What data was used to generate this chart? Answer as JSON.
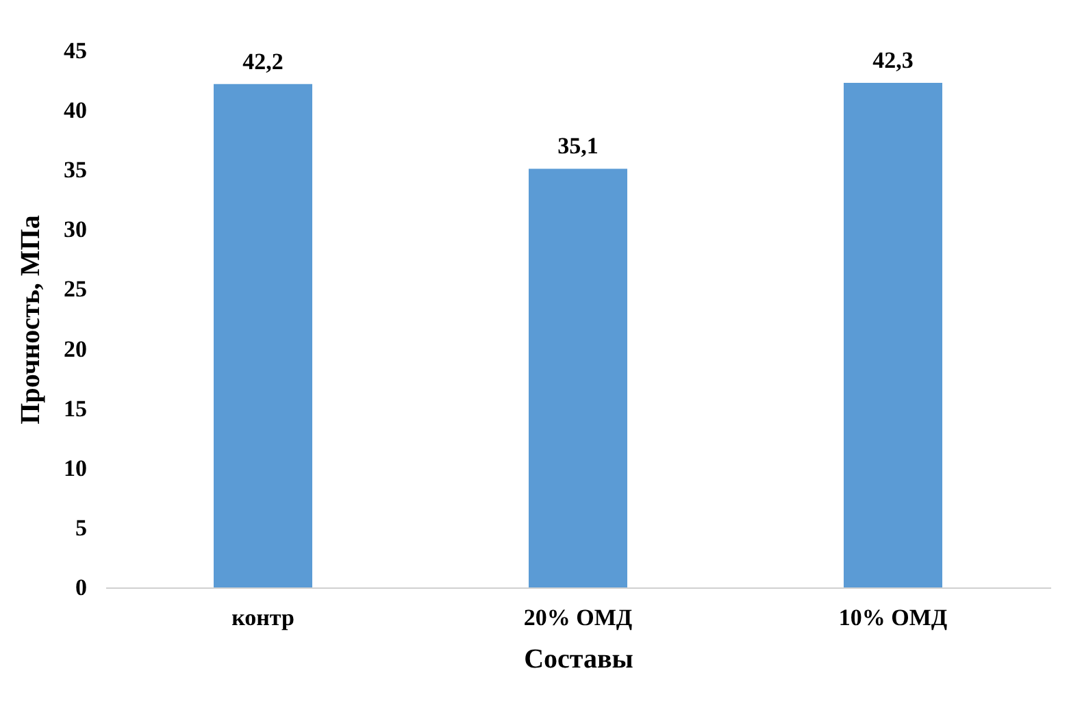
{
  "chart_data": {
    "type": "bar",
    "xlabel": "Составы",
    "ylabel": "Прочность, МПа",
    "categories": [
      "контр",
      "20% ОМД",
      "10% ОМД"
    ],
    "values": [
      42.2,
      35.1,
      42.3
    ],
    "value_labels": [
      "42,2",
      "35,1",
      "42,3"
    ],
    "color": "#5b9bd5",
    "ylim": [
      0,
      45
    ],
    "yticks": [
      0,
      5,
      10,
      15,
      20,
      25,
      30,
      35,
      40,
      45
    ],
    "grid": false
  }
}
